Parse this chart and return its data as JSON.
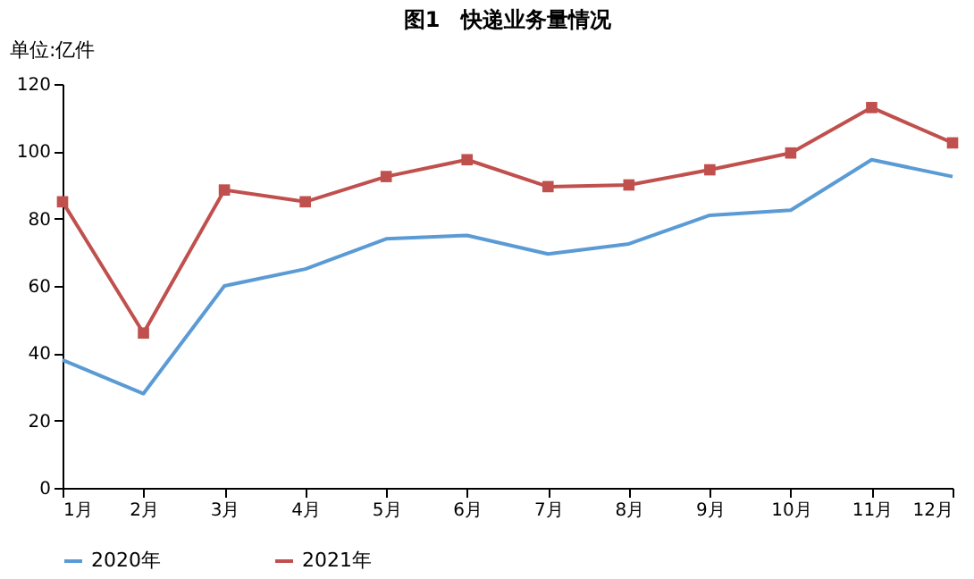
{
  "chart_data": {
    "type": "line",
    "title": "图1　快递业务量情况",
    "ylabel": "单位:亿件",
    "categories": [
      "1月",
      "2月",
      "3月",
      "4月",
      "5月",
      "6月",
      "7月",
      "8月",
      "9月",
      "10月",
      "11月",
      "12月"
    ],
    "series": [
      {
        "name": "2020年",
        "color": "#5b9bd5",
        "marker": "none",
        "values": [
          38,
          28,
          60,
          65,
          74,
          75,
          69.5,
          72.5,
          81,
          82.5,
          97.5,
          92.5
        ]
      },
      {
        "name": "2021年",
        "color": "#c0504d",
        "marker": "square",
        "values": [
          85,
          46,
          88.5,
          85,
          92.5,
          97.5,
          89.5,
          90,
          94.5,
          99.5,
          113,
          102.5
        ]
      }
    ],
    "ylim": [
      0,
      120
    ],
    "yticks": [
      0,
      20,
      40,
      60,
      80,
      100,
      120
    ],
    "grid": false,
    "legend": "bottom"
  }
}
